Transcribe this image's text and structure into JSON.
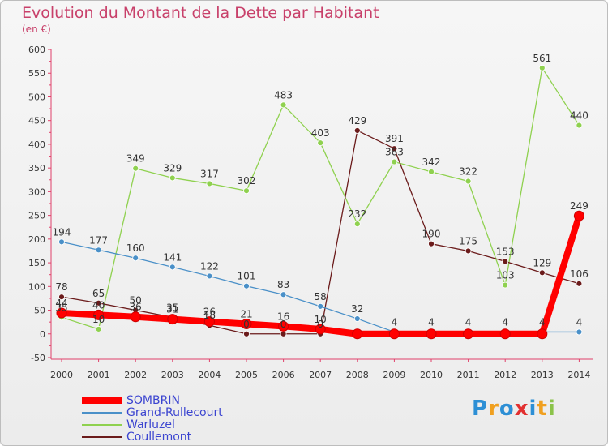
{
  "header": {
    "title": "Evolution du Montant de la Dette par Habitant",
    "unit": "(en €)"
  },
  "logo": {
    "text": "Proxiti",
    "colors": [
      "#2d8fd5",
      "#f0a020",
      "#2d8fd5",
      "#e23030",
      "#2d8fd5",
      "#f0a020",
      "#8bc34a"
    ]
  },
  "chart_data": {
    "type": "line",
    "title": "Evolution du Montant de la Dette par Habitant",
    "ylabel": "(en €)",
    "xlabel": "",
    "ylim": [
      -50,
      600
    ],
    "yticks": [
      -50,
      0,
      50,
      100,
      150,
      200,
      250,
      300,
      350,
      400,
      450,
      500,
      550,
      600
    ],
    "grid": false,
    "legend": "bottom-left",
    "x": [
      "2000",
      "2001",
      "2002",
      "2003",
      "2004",
      "2005",
      "2006",
      "2007",
      "2008",
      "2009",
      "2010",
      "2011",
      "2012",
      "2013",
      "2014"
    ],
    "series": [
      {
        "name": "SOMBRIN",
        "color": "#ff0000",
        "values": [
          44,
          40,
          36,
          31,
          26,
          21,
          16,
          10,
          0,
          0,
          0,
          0,
          0,
          0,
          249
        ],
        "labels": [
          "44",
          "40",
          "36",
          "31",
          "26",
          "21",
          "16",
          "10",
          "",
          "",
          "",
          "",
          "",
          "",
          "249"
        ]
      },
      {
        "name": "Grand-Rullecourt",
        "color": "#4a90c8",
        "values": [
          194,
          177,
          160,
          141,
          122,
          101,
          83,
          58,
          32,
          4,
          4,
          4,
          4,
          4,
          4
        ],
        "labels": [
          "194",
          "177",
          "160",
          "141",
          "122",
          "101",
          "83",
          "58",
          "32",
          "4",
          "4",
          "4",
          "4",
          "4",
          "4"
        ]
      },
      {
        "name": "Warluzel",
        "color": "#8fd14f",
        "values": [
          35,
          10,
          349,
          329,
          317,
          302,
          483,
          403,
          232,
          363,
          342,
          322,
          103,
          561,
          440
        ],
        "labels": [
          "35",
          "10",
          "349",
          "329",
          "317",
          "302",
          "483",
          "403",
          "232",
          "363",
          "342",
          "322",
          "103",
          "561",
          "440"
        ]
      },
      {
        "name": "Coullemont",
        "color": "#6b1b1b",
        "values": [
          78,
          65,
          50,
          35,
          18,
          0,
          0,
          0,
          429,
          391,
          190,
          175,
          153,
          129,
          106
        ],
        "labels": [
          "78",
          "65",
          "50",
          "35",
          "18",
          "0",
          "0",
          "0",
          "429",
          "391",
          "190",
          "175",
          "153",
          "129",
          "106"
        ]
      }
    ]
  }
}
